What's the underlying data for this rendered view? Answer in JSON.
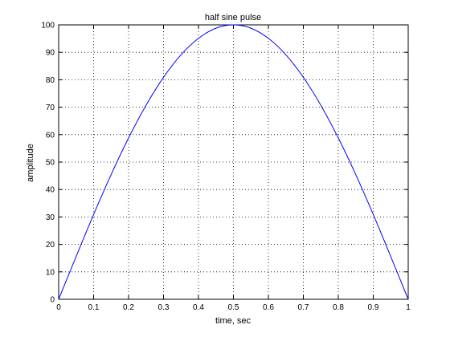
{
  "chart_data": {
    "type": "line",
    "title": "half sine pulse",
    "xlabel": "time, sec",
    "ylabel": "amplitude",
    "xlim": [
      0,
      1
    ],
    "ylim": [
      0,
      100
    ],
    "xticks": [
      0,
      0.1,
      0.2,
      0.3,
      0.4,
      0.5,
      0.6,
      0.7,
      0.8,
      0.9,
      1
    ],
    "xtick_labels": [
      "0",
      "0.1",
      "0.2",
      "0.3",
      "0.4",
      "0.5",
      "0.6",
      "0.7",
      "0.8",
      "0.9",
      "1"
    ],
    "yticks": [
      0,
      10,
      20,
      30,
      40,
      50,
      60,
      70,
      80,
      90,
      100
    ],
    "ytick_labels": [
      "0",
      "10",
      "20",
      "30",
      "40",
      "50",
      "60",
      "70",
      "80",
      "90",
      "100"
    ],
    "grid": true,
    "legend": "none",
    "series": [
      {
        "color": "#0000ff",
        "x": [
          0,
          0.05,
          0.1,
          0.15,
          0.2,
          0.25,
          0.3,
          0.35,
          0.4,
          0.45,
          0.5,
          0.55,
          0.6,
          0.65,
          0.7,
          0.75,
          0.8,
          0.85,
          0.9,
          0.95,
          1
        ],
        "y": [
          0,
          15.6,
          30.9,
          45.4,
          58.8,
          70.7,
          80.9,
          89.1,
          95.1,
          98.8,
          100,
          98.8,
          95.1,
          89.1,
          80.9,
          70.7,
          58.8,
          45.4,
          30.9,
          15.6,
          0
        ]
      }
    ]
  }
}
